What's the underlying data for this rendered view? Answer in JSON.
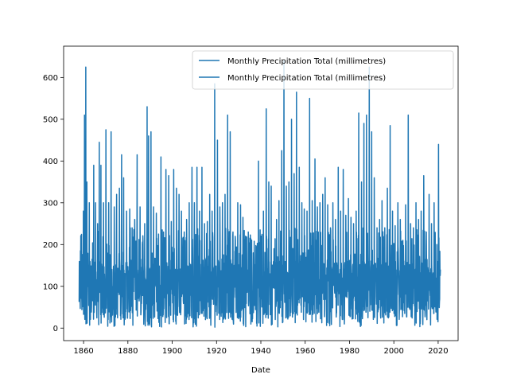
{
  "chart_data": {
    "type": "line",
    "title": "",
    "xlabel": "Date",
    "ylabel": "",
    "xlim": [
      1851,
      2029
    ],
    "ylim": [
      -30,
      675
    ],
    "x_ticks": [
      1860,
      1880,
      1900,
      1920,
      1940,
      1960,
      1980,
      2000,
      2020
    ],
    "y_ticks": [
      0,
      100,
      200,
      300,
      400,
      500,
      600
    ],
    "grid": false,
    "legend_position": "top-right",
    "x_range": [
      1858,
      2021
    ],
    "sampling": "monthly",
    "color": "#1f77b4",
    "series": [
      {
        "name": "Monthly Precipitation Total (millimetres)",
        "peaks": [
          [
            1858.6,
            185
          ],
          [
            1859.9,
            280
          ],
          [
            1860.4,
            510
          ],
          [
            1861.0,
            625
          ],
          [
            1861.5,
            350
          ],
          [
            1862.6,
            300
          ],
          [
            1863.8,
            165
          ],
          [
            1864.6,
            390
          ],
          [
            1865.4,
            300
          ],
          [
            1866.3,
            250
          ],
          [
            1867.1,
            445
          ],
          [
            1867.8,
            390
          ],
          [
            1869.0,
            300
          ],
          [
            1870.1,
            475
          ],
          [
            1871.3,
            300
          ],
          [
            1872.4,
            470
          ],
          [
            1873.8,
            290
          ],
          [
            1874.9,
            320
          ],
          [
            1876.2,
            335
          ],
          [
            1877.2,
            415
          ],
          [
            1878.1,
            360
          ],
          [
            1879.4,
            280
          ],
          [
            1880.8,
            285
          ],
          [
            1881.9,
            240
          ],
          [
            1883.1,
            260
          ],
          [
            1884.2,
            415
          ],
          [
            1885.5,
            290
          ],
          [
            1886.5,
            200
          ],
          [
            1887.6,
            250
          ],
          [
            1888.7,
            530
          ],
          [
            1889.3,
            460
          ],
          [
            1890.4,
            470
          ],
          [
            1891.6,
            290
          ],
          [
            1892.8,
            275
          ],
          [
            1893.8,
            225
          ],
          [
            1894.9,
            410
          ],
          [
            1896.1,
            230
          ],
          [
            1897.2,
            380
          ],
          [
            1898.4,
            365
          ],
          [
            1899.6,
            255
          ],
          [
            1900.7,
            380
          ],
          [
            1901.9,
            335
          ],
          [
            1903.1,
            320
          ],
          [
            1904.2,
            280
          ],
          [
            1905.4,
            230
          ],
          [
            1906.5,
            260
          ],
          [
            1907.7,
            300
          ],
          [
            1908.9,
            385
          ],
          [
            1910.0,
            300
          ],
          [
            1911.2,
            385
          ],
          [
            1912.3,
            280
          ],
          [
            1913.4,
            385
          ],
          [
            1914.6,
            250
          ],
          [
            1915.8,
            255
          ],
          [
            1916.9,
            320
          ],
          [
            1918.0,
            280
          ],
          [
            1919.2,
            585
          ],
          [
            1920.4,
            450
          ],
          [
            1921.5,
            290
          ],
          [
            1922.7,
            300
          ],
          [
            1923.8,
            320
          ],
          [
            1925.0,
            510
          ],
          [
            1926.2,
            470
          ],
          [
            1927.4,
            230
          ],
          [
            1928.5,
            210
          ],
          [
            1929.6,
            300
          ],
          [
            1930.8,
            295
          ],
          [
            1931.9,
            265
          ],
          [
            1933.1,
            220
          ],
          [
            1934.3,
            230
          ],
          [
            1935.4,
            215
          ],
          [
            1936.6,
            180
          ],
          [
            1937.8,
            195
          ],
          [
            1938.9,
            400
          ],
          [
            1940.1,
            220
          ],
          [
            1941.2,
            280
          ],
          [
            1942.4,
            525
          ],
          [
            1943.6,
            350
          ],
          [
            1944.7,
            340
          ],
          [
            1945.9,
            190
          ],
          [
            1947.1,
            260
          ],
          [
            1948.2,
            305
          ],
          [
            1949.4,
            425
          ],
          [
            1950.4,
            640
          ],
          [
            1951.5,
            340
          ],
          [
            1952.7,
            350
          ],
          [
            1953.8,
            500
          ],
          [
            1955.0,
            370
          ],
          [
            1956.1,
            565
          ],
          [
            1957.3,
            385
          ],
          [
            1958.5,
            300
          ],
          [
            1959.6,
            285
          ],
          [
            1960.8,
            280
          ],
          [
            1962.0,
            550
          ],
          [
            1963.2,
            305
          ],
          [
            1964.4,
            405
          ],
          [
            1965.5,
            290
          ],
          [
            1966.7,
            300
          ],
          [
            1967.9,
            320
          ],
          [
            1969.0,
            360
          ],
          [
            1970.2,
            295
          ],
          [
            1971.4,
            240
          ],
          [
            1972.5,
            300
          ],
          [
            1973.7,
            260
          ],
          [
            1974.9,
            385
          ],
          [
            1976.0,
            280
          ],
          [
            1977.2,
            380
          ],
          [
            1978.3,
            270
          ],
          [
            1979.5,
            310
          ],
          [
            1980.7,
            265
          ],
          [
            1981.8,
            250
          ],
          [
            1983.0,
            280
          ],
          [
            1984.2,
            515
          ],
          [
            1985.4,
            350
          ],
          [
            1986.5,
            490
          ],
          [
            1987.7,
            510
          ],
          [
            1988.9,
            625
          ],
          [
            1990.0,
            470
          ],
          [
            1991.2,
            360
          ],
          [
            1992.4,
            240
          ],
          [
            1993.6,
            260
          ],
          [
            1994.7,
            305
          ],
          [
            1995.9,
            240
          ],
          [
            1997.1,
            335
          ],
          [
            1998.3,
            485
          ],
          [
            1999.4,
            280
          ],
          [
            2000.6,
            245
          ],
          [
            2001.8,
            300
          ],
          [
            2002.9,
            260
          ],
          [
            2004.1,
            210
          ],
          [
            2005.3,
            295
          ],
          [
            2006.5,
            510
          ],
          [
            2007.6,
            250
          ],
          [
            2008.8,
            240
          ],
          [
            2010.0,
            300
          ],
          [
            2011.2,
            260
          ],
          [
            2012.3,
            280
          ],
          [
            2013.5,
            365
          ],
          [
            2014.7,
            230
          ],
          [
            2015.9,
            320
          ],
          [
            2017.0,
            250
          ],
          [
            2018.2,
            300
          ],
          [
            2019.4,
            200
          ],
          [
            2020.2,
            440
          ],
          [
            2021.0,
            140
          ]
        ],
        "baseline_min": 0,
        "typical_range": [
          20,
          160
        ]
      },
      {
        "name": "Monthly Precipitation Total (millimetres)",
        "duplicate_of": 0
      }
    ],
    "legend": [
      "Monthly Precipitation Total (millimetres)",
      "Monthly Precipitation Total (millimetres)"
    ]
  }
}
